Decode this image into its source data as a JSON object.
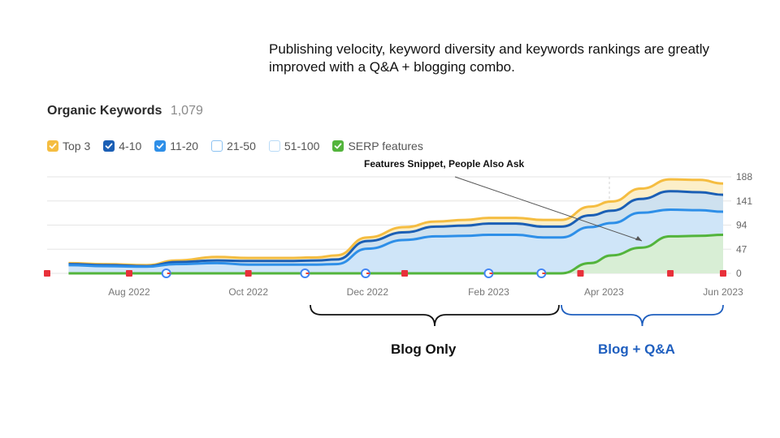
{
  "headline": "Publishing velocity, keyword diversity and keywords rankings are greatly improved with a Q&A + blogging combo.",
  "card": {
    "title": "Organic Keywords",
    "count": "1,079"
  },
  "legend": [
    {
      "label": "Top 3",
      "color": "#f5bd41",
      "checked": true
    },
    {
      "label": "4-10",
      "color": "#1b5fb5",
      "checked": true
    },
    {
      "label": "11-20",
      "color": "#2e8fe8",
      "checked": true
    },
    {
      "label": "21-50",
      "color": "#8cc2f2",
      "checked": false
    },
    {
      "label": "51-100",
      "color": "#b9dbf7",
      "checked": false
    },
    {
      "label": "SERP features",
      "color": "#53b43c",
      "checked": true
    }
  ],
  "annotation": "Features Snippet, People Also Ask",
  "chart_data": {
    "type": "area",
    "x": [
      "2022-07-01",
      "2022-07-20",
      "2022-08-10",
      "2022-08-25",
      "2022-09-15",
      "2022-10-01",
      "2022-10-20",
      "2022-11-05",
      "2022-11-15",
      "2022-12-01",
      "2022-12-20",
      "2023-01-05",
      "2023-01-20",
      "2023-02-01",
      "2023-02-15",
      "2023-03-01",
      "2023-03-10",
      "2023-03-25",
      "2023-04-05",
      "2023-04-20",
      "2023-05-05",
      "2023-05-20",
      "2023-06-01"
    ],
    "x_ticks": [
      "Aug 2022",
      "Oct 2022",
      "Dec 2022",
      "Feb 2023",
      "Apr 2023",
      "Jun 2023"
    ],
    "y_ticks": [
      0,
      47,
      94,
      141,
      188
    ],
    "ylim": [
      0,
      188
    ],
    "series": [
      {
        "name": "Top 3",
        "color": "#f5bd41",
        "values": [
          20,
          18,
          16,
          25,
          32,
          30,
          30,
          31,
          35,
          70,
          90,
          101,
          104,
          108,
          108,
          104,
          104,
          130,
          140,
          165,
          183,
          182,
          175
        ]
      },
      {
        "name": "4-10",
        "color": "#1b5fb5",
        "values": [
          18,
          16,
          14,
          22,
          25,
          24,
          24,
          25,
          27,
          63,
          80,
          91,
          93,
          97,
          97,
          91,
          91,
          113,
          122,
          145,
          160,
          158,
          153
        ]
      },
      {
        "name": "11-20",
        "color": "#2e8fe8",
        "values": [
          16,
          14,
          13,
          18,
          20,
          17,
          17,
          17,
          18,
          48,
          65,
          72,
          73,
          75,
          75,
          70,
          70,
          90,
          98,
          118,
          124,
          123,
          120
        ]
      },
      {
        "name": "SERP features",
        "color": "#53b43c",
        "values": [
          0,
          0,
          0,
          0,
          0,
          0,
          0,
          0,
          0,
          0,
          0,
          0,
          0,
          0,
          0,
          0,
          0,
          20,
          35,
          50,
          72,
          73,
          75
        ]
      }
    ]
  },
  "brackets": {
    "blog_only": "Blog Only",
    "blog_qa": "Blog + Q&A"
  }
}
